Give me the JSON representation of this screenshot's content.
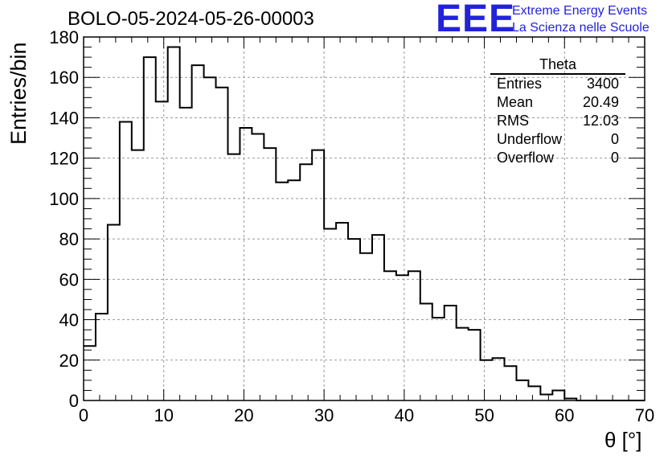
{
  "chart_data": {
    "type": "histogram",
    "title": "BOLO-05-2024-05-26-00003",
    "xlabel": "θ [°]",
    "ylabel": "Entries/bin",
    "xlim": [
      0,
      70
    ],
    "ylim": [
      0,
      180
    ],
    "xticks": [
      "0",
      "10",
      "20",
      "30",
      "40",
      "50",
      "60",
      "70"
    ],
    "yticks": [
      "0",
      "20",
      "40",
      "60",
      "80",
      "100",
      "120",
      "140",
      "160",
      "180"
    ],
    "grid": true,
    "bin_width": 1.5,
    "bin_start": 0,
    "values": [
      27,
      43,
      87,
      138,
      124,
      170,
      148,
      175,
      145,
      166,
      160,
      155,
      122,
      135,
      132,
      125,
      108,
      109,
      117,
      124,
      85,
      88,
      80,
      73,
      82,
      64,
      62,
      64,
      48,
      41,
      47,
      36,
      35,
      20,
      21,
      17,
      10,
      7,
      3,
      5,
      1,
      0,
      0,
      0,
      0,
      0,
      0,
      0,
      0,
      0,
      0,
      0,
      0,
      0,
      0,
      0,
      0,
      0,
      0,
      0,
      0,
      0,
      0,
      0,
      0,
      0,
      0,
      0,
      0,
      0,
      0,
      0,
      0,
      0,
      0,
      0,
      0,
      0,
      0,
      0,
      0,
      0,
      0,
      0,
      0,
      0,
      0,
      0,
      0,
      0,
      0,
      0,
      0
    ]
  },
  "stats_box": {
    "title": "Theta",
    "rows": [
      {
        "label": "Entries",
        "value": "3400"
      },
      {
        "label": "Mean",
        "value": "20.49"
      },
      {
        "label": "RMS",
        "value": "12.03"
      },
      {
        "label": "Underflow",
        "value": "0"
      },
      {
        "label": "Overflow",
        "value": "0"
      }
    ]
  },
  "logo": {
    "mark": "EEE",
    "line1": "Extreme Energy Events",
    "line2": "La Scienza nelle Scuole",
    "color": "#2222dd"
  }
}
